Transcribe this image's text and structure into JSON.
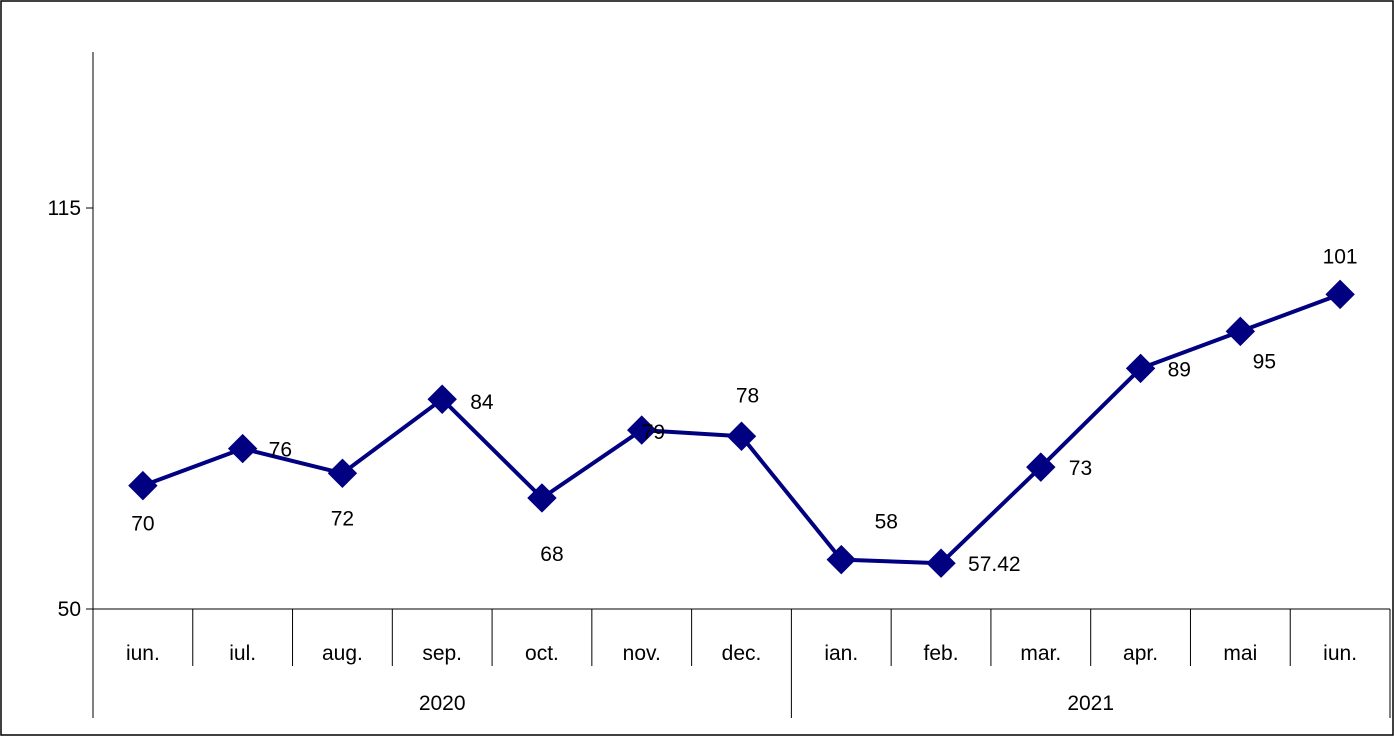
{
  "chart_data": {
    "type": "line",
    "title": "",
    "xlabel": "",
    "ylabel": "",
    "ylim": [
      50,
      115
    ],
    "yticks": [
      "115",
      "50"
    ],
    "grid": false,
    "legend": "none",
    "categories": [
      "iun.",
      "iul.",
      "aug.",
      "sep.",
      "oct.",
      "nov.",
      "dec.",
      "ian.",
      "feb.",
      "mar.",
      "apr.",
      "mai",
      "iun."
    ],
    "groups": [
      {
        "label": "2020",
        "count": 7
      },
      {
        "label": "2021",
        "count": 6
      }
    ],
    "series": [
      {
        "values": [
          70,
          76,
          72,
          84,
          68,
          79,
          78,
          58,
          57.42,
          73,
          89,
          95,
          101
        ],
        "labels": [
          "70",
          "76",
          "72",
          "84",
          "68",
          "79",
          "78",
          "58",
          "57.42",
          "73",
          "89",
          "95",
          "101"
        ],
        "color": "#000080"
      }
    ]
  }
}
